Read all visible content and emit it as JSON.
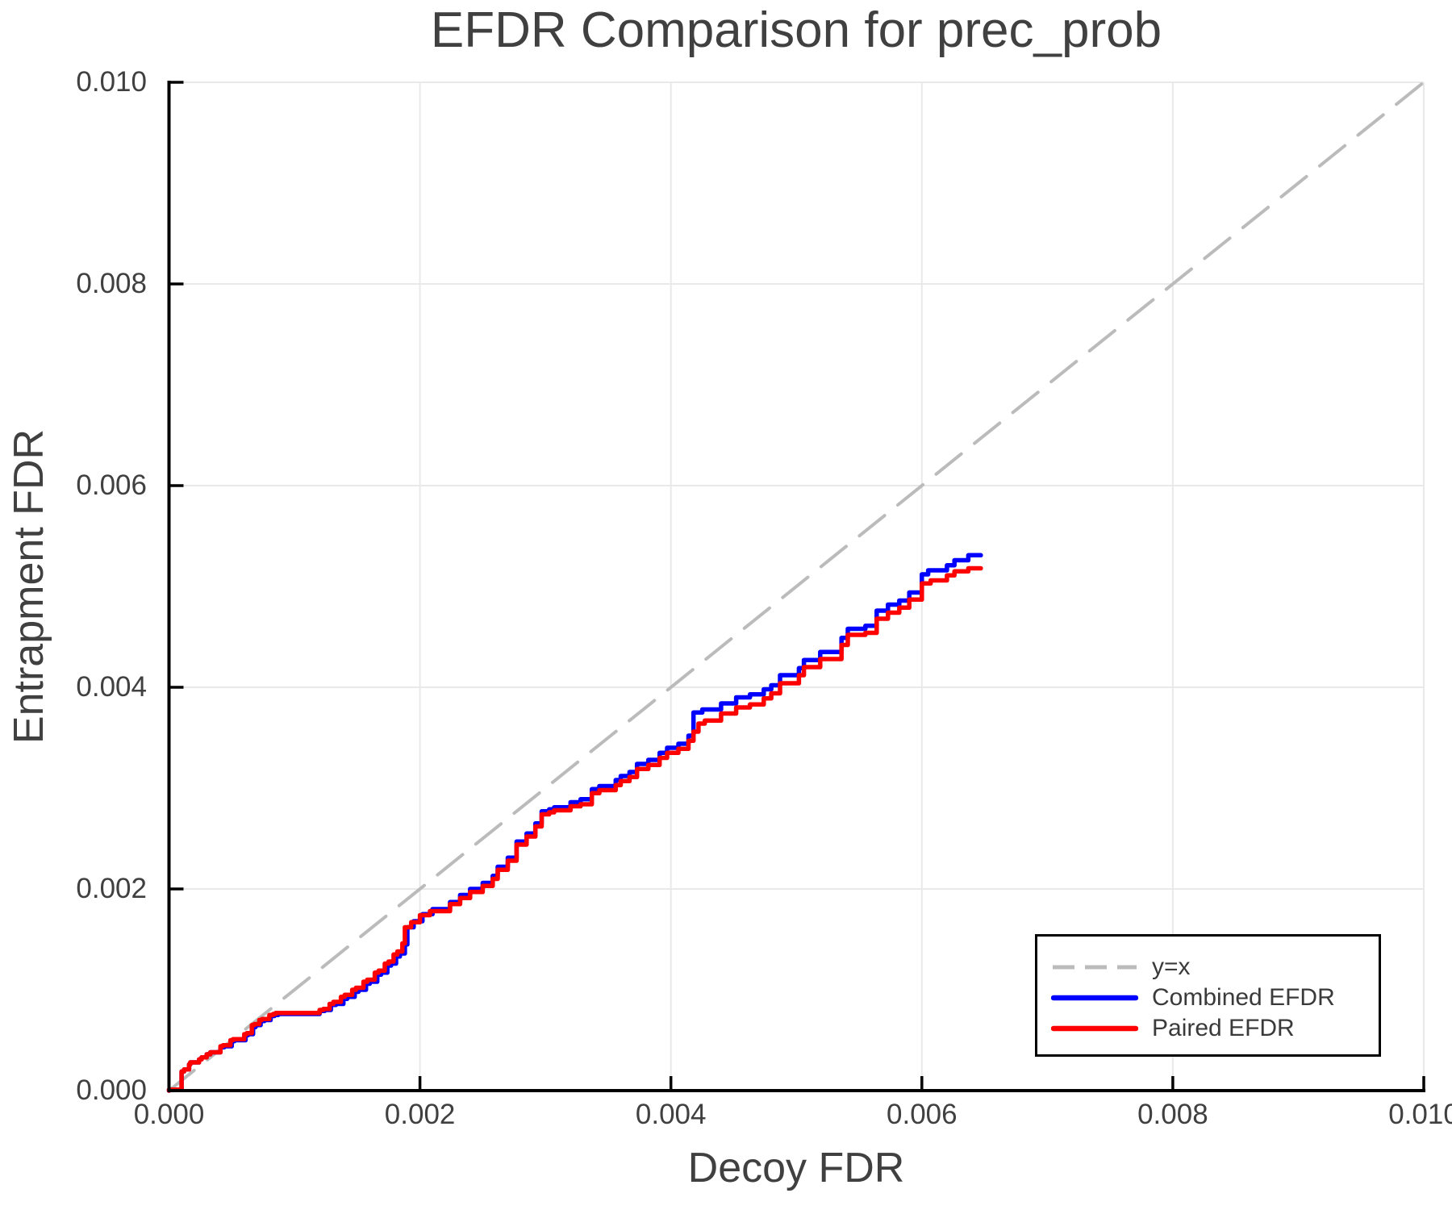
{
  "title": "EFDR Comparison for prec_prob",
  "axes": {
    "x": {
      "label": "Decoy FDR",
      "lim": [
        0,
        0.01
      ],
      "ticks": [
        "0.000",
        "0.002",
        "0.004",
        "0.006",
        "0.008",
        "0.010"
      ]
    },
    "y": {
      "label": "Entrapment FDR",
      "lim": [
        0,
        0.01
      ],
      "ticks": [
        "0.000",
        "0.002",
        "0.004",
        "0.006",
        "0.008",
        "0.010"
      ]
    }
  },
  "colors": {
    "identity": "#bbbbbb",
    "combined": "#0000ff",
    "paired": "#ff0000",
    "grid": "#e9e9e9",
    "axis": "#000000",
    "text": "#404040"
  },
  "legend": {
    "position": "lower right"
  },
  "chart_data": {
    "type": "line",
    "title": "EFDR Comparison for prec_prob",
    "xlabel": "Decoy FDR",
    "ylabel": "Entrapment FDR",
    "xlim": [
      0,
      0.01
    ],
    "ylim": [
      0,
      0.01
    ],
    "grid": true,
    "legend_position": "lower right",
    "series": [
      {
        "name": "y=x",
        "color": "#bbbbbb",
        "style": "dashed",
        "step": false,
        "points": [
          [
            0,
            0
          ],
          [
            0.01,
            0.01
          ]
        ]
      },
      {
        "name": "Combined EFDR",
        "color": "#0000ff",
        "style": "solid",
        "step": true,
        "points": [
          [
            0,
            0
          ],
          [
            0.0001,
            1e-05
          ],
          [
            0.00012,
            0.00019
          ],
          [
            0.00016,
            0.00021
          ],
          [
            0.00017,
            0.00026
          ],
          [
            0.00024,
            0.00028
          ],
          [
            0.00026,
            0.00031
          ],
          [
            0.0003,
            0.00033
          ],
          [
            0.00033,
            0.00036
          ],
          [
            0.00041,
            0.00038
          ],
          [
            0.00044,
            0.00043
          ],
          [
            0.0005,
            0.00044
          ],
          [
            0.00052,
            0.00049
          ],
          [
            0.00061,
            0.0005
          ],
          [
            0.00063,
            0.00055
          ],
          [
            0.00067,
            0.00056
          ],
          [
            0.00069,
            0.00063
          ],
          [
            0.00073,
            0.00065
          ],
          [
            0.00076,
            0.00069
          ],
          [
            0.00081,
            0.0007
          ],
          [
            0.00084,
            0.00074
          ],
          [
            0.00087,
            0.00075
          ],
          [
            0.0012,
            0.00076
          ],
          [
            0.00124,
            0.00079
          ],
          [
            0.00129,
            0.0008
          ],
          [
            0.00133,
            0.00085
          ],
          [
            0.00139,
            0.00086
          ],
          [
            0.00142,
            0.00091
          ],
          [
            0.00148,
            0.00093
          ],
          [
            0.00151,
            0.00098
          ],
          [
            0.00157,
            0.001
          ],
          [
            0.0016,
            0.00106
          ],
          [
            0.00166,
            0.00108
          ],
          [
            0.00169,
            0.00115
          ],
          [
            0.00174,
            0.00117
          ],
          [
            0.00177,
            0.00124
          ],
          [
            0.00181,
            0.00126
          ],
          [
            0.00184,
            0.00133
          ],
          [
            0.00188,
            0.00136
          ],
          [
            0.0019,
            0.00145
          ],
          [
            0.00195,
            0.00162
          ],
          [
            0.00202,
            0.00168
          ],
          [
            0.0021,
            0.00175
          ],
          [
            0.00224,
            0.0018
          ],
          [
            0.00232,
            0.00187
          ],
          [
            0.0024,
            0.00194
          ],
          [
            0.0025,
            0.002
          ],
          [
            0.00258,
            0.00206
          ],
          [
            0.00262,
            0.00213
          ],
          [
            0.0027,
            0.00222
          ],
          [
            0.00277,
            0.00231
          ],
          [
            0.00285,
            0.00247
          ],
          [
            0.00292,
            0.00255
          ],
          [
            0.00297,
            0.00265
          ],
          [
            0.00303,
            0.00277
          ],
          [
            0.00307,
            0.00279
          ],
          [
            0.0032,
            0.00281
          ],
          [
            0.00328,
            0.00286
          ],
          [
            0.00337,
            0.00289
          ],
          [
            0.00343,
            0.00299
          ],
          [
            0.00356,
            0.00302
          ],
          [
            0.0036,
            0.00308
          ],
          [
            0.00367,
            0.00312
          ],
          [
            0.00373,
            0.00316
          ],
          [
            0.00382,
            0.00324
          ],
          [
            0.00391,
            0.00328
          ],
          [
            0.00397,
            0.00335
          ],
          [
            0.00406,
            0.0034
          ],
          [
            0.00414,
            0.00344
          ],
          [
            0.00418,
            0.00352
          ],
          [
            0.00425,
            0.00375
          ],
          [
            0.0044,
            0.00378
          ],
          [
            0.00452,
            0.00384
          ],
          [
            0.00463,
            0.0039
          ],
          [
            0.00474,
            0.00393
          ],
          [
            0.0048,
            0.00398
          ],
          [
            0.00487,
            0.00402
          ],
          [
            0.00502,
            0.00412
          ],
          [
            0.00506,
            0.00419
          ],
          [
            0.00519,
            0.00427
          ],
          [
            0.00536,
            0.00435
          ],
          [
            0.00541,
            0.00449
          ],
          [
            0.00555,
            0.00458
          ],
          [
            0.00564,
            0.00461
          ],
          [
            0.00573,
            0.00476
          ],
          [
            0.00582,
            0.00482
          ],
          [
            0.0059,
            0.00486
          ],
          [
            0.006,
            0.00494
          ],
          [
            0.00605,
            0.00512
          ],
          [
            0.0062,
            0.00516
          ],
          [
            0.00626,
            0.00521
          ],
          [
            0.00637,
            0.00526
          ],
          [
            0.00647,
            0.00531
          ]
        ]
      },
      {
        "name": "Paired EFDR",
        "color": "#ff0000",
        "style": "solid",
        "step": true,
        "points": [
          [
            0,
            0
          ],
          [
            0.0001,
            1e-05
          ],
          [
            0.00012,
            0.00019
          ],
          [
            0.00016,
            0.00021
          ],
          [
            0.00017,
            0.00026
          ],
          [
            0.00024,
            0.00028
          ],
          [
            0.00026,
            0.00031
          ],
          [
            0.0003,
            0.00033
          ],
          [
            0.00033,
            0.00036
          ],
          [
            0.00041,
            0.00038
          ],
          [
            0.00043,
            0.00044
          ],
          [
            0.00049,
            0.00045
          ],
          [
            0.00051,
            0.0005
          ],
          [
            0.0006,
            0.00051
          ],
          [
            0.00062,
            0.00056
          ],
          [
            0.00066,
            0.00057
          ],
          [
            0.00068,
            0.00065
          ],
          [
            0.00072,
            0.00066
          ],
          [
            0.00074,
            0.0007
          ],
          [
            0.0008,
            0.00071
          ],
          [
            0.00083,
            0.00075
          ],
          [
            0.00085,
            0.00076
          ],
          [
            0.0012,
            0.00077
          ],
          [
            0.00123,
            0.0008
          ],
          [
            0.00128,
            0.00081
          ],
          [
            0.00131,
            0.00086
          ],
          [
            0.00137,
            0.00088
          ],
          [
            0.0014,
            0.00093
          ],
          [
            0.00146,
            0.00095
          ],
          [
            0.00149,
            0.001
          ],
          [
            0.00155,
            0.00102
          ],
          [
            0.00158,
            0.00108
          ],
          [
            0.00164,
            0.0011
          ],
          [
            0.00167,
            0.00117
          ],
          [
            0.00172,
            0.00119
          ],
          [
            0.00175,
            0.00126
          ],
          [
            0.00179,
            0.00128
          ],
          [
            0.00182,
            0.00135
          ],
          [
            0.00186,
            0.00138
          ],
          [
            0.00188,
            0.00146
          ],
          [
            0.00193,
            0.00162
          ],
          [
            0.002,
            0.00167
          ],
          [
            0.00208,
            0.00174
          ],
          [
            0.00224,
            0.00178
          ],
          [
            0.00232,
            0.00185
          ],
          [
            0.0024,
            0.00191
          ],
          [
            0.0025,
            0.00197
          ],
          [
            0.00258,
            0.00203
          ],
          [
            0.00262,
            0.0021
          ],
          [
            0.0027,
            0.00219
          ],
          [
            0.00277,
            0.00228
          ],
          [
            0.00285,
            0.00244
          ],
          [
            0.00292,
            0.00252
          ],
          [
            0.00297,
            0.00262
          ],
          [
            0.00303,
            0.00274
          ],
          [
            0.00307,
            0.00276
          ],
          [
            0.0032,
            0.00278
          ],
          [
            0.00328,
            0.00282
          ],
          [
            0.00337,
            0.00284
          ],
          [
            0.00343,
            0.00295
          ],
          [
            0.00356,
            0.00298
          ],
          [
            0.0036,
            0.00303
          ],
          [
            0.00367,
            0.00307
          ],
          [
            0.00373,
            0.00311
          ],
          [
            0.00382,
            0.00319
          ],
          [
            0.00391,
            0.00323
          ],
          [
            0.00397,
            0.0033
          ],
          [
            0.00406,
            0.00335
          ],
          [
            0.00414,
            0.00339
          ],
          [
            0.00418,
            0.00347
          ],
          [
            0.00422,
            0.00356
          ],
          [
            0.00427,
            0.00364
          ],
          [
            0.0044,
            0.00367
          ],
          [
            0.00452,
            0.00374
          ],
          [
            0.00463,
            0.0038
          ],
          [
            0.00474,
            0.00383
          ],
          [
            0.0048,
            0.00389
          ],
          [
            0.00487,
            0.00394
          ],
          [
            0.00502,
            0.00404
          ],
          [
            0.00506,
            0.00412
          ],
          [
            0.00519,
            0.0042
          ],
          [
            0.00536,
            0.00428
          ],
          [
            0.00541,
            0.00442
          ],
          [
            0.00555,
            0.00452
          ],
          [
            0.00564,
            0.00454
          ],
          [
            0.00573,
            0.00468
          ],
          [
            0.00582,
            0.00474
          ],
          [
            0.0059,
            0.00479
          ],
          [
            0.006,
            0.00487
          ],
          [
            0.00607,
            0.00503
          ],
          [
            0.0062,
            0.00506
          ],
          [
            0.00626,
            0.00511
          ],
          [
            0.00637,
            0.00515
          ],
          [
            0.00647,
            0.00518
          ]
        ]
      }
    ]
  }
}
